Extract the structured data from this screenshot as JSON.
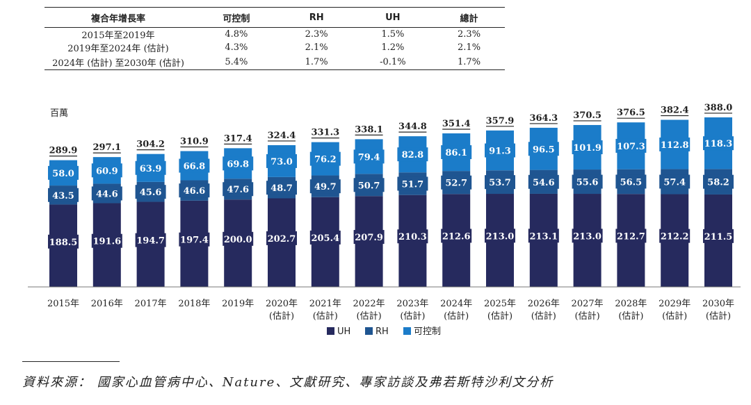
{
  "cagr_table": {
    "headers": [
      "複合年增長率",
      "可控制",
      "RH",
      "UH",
      "總計"
    ],
    "rows": [
      [
        "2015年至2019年",
        "4.8%",
        "2.3%",
        "1.5%",
        "2.3%"
      ],
      [
        "2019年至2024年 (估計)",
        "4.3%",
        "2.1%",
        "1.2%",
        "2.1%"
      ],
      [
        "2024年 (估計) 至2030年 (估計)",
        "5.4%",
        "1.7%",
        "-0.1%",
        "1.7%"
      ]
    ]
  },
  "chart_data": {
    "type": "bar",
    "stacked": true,
    "unit_label": "百萬",
    "categories": [
      [
        "2015年"
      ],
      [
        "2016年"
      ],
      [
        "2017年"
      ],
      [
        "2018年"
      ],
      [
        "2019年"
      ],
      [
        "2020年",
        "(估計)"
      ],
      [
        "2021年",
        "(估計)"
      ],
      [
        "2022年",
        "(估計)"
      ],
      [
        "2023年",
        "(估計)"
      ],
      [
        "2024年",
        "(估計)"
      ],
      [
        "2025年",
        "(估計)"
      ],
      [
        "2026年",
        "(估計)"
      ],
      [
        "2027年",
        "(估計)"
      ],
      [
        "2028年",
        "(估計)"
      ],
      [
        "2029年",
        "(估計)"
      ],
      [
        "2030年",
        "(估計)"
      ]
    ],
    "series": [
      {
        "name": "UH",
        "color": "#262a5e",
        "values": [
          188.5,
          191.6,
          194.7,
          197.4,
          200.0,
          202.7,
          205.4,
          207.9,
          210.3,
          212.6,
          213.0,
          213.1,
          213.0,
          212.7,
          212.2,
          211.5
        ]
      },
      {
        "name": "RH",
        "color": "#1f5591",
        "values": [
          43.5,
          44.6,
          45.6,
          46.6,
          47.6,
          48.7,
          49.7,
          50.7,
          51.7,
          52.7,
          53.7,
          54.6,
          55.6,
          56.5,
          57.4,
          58.2
        ]
      },
      {
        "name": "可控制",
        "color": "#1b7cc9",
        "values": [
          58.0,
          60.9,
          63.9,
          66.8,
          69.8,
          73.0,
          76.2,
          79.4,
          82.8,
          86.1,
          91.3,
          96.5,
          101.9,
          107.3,
          112.8,
          118.3
        ]
      }
    ],
    "totals": [
      289.9,
      297.1,
      304.2,
      310.9,
      317.4,
      324.4,
      331.3,
      338.1,
      344.8,
      351.4,
      357.9,
      364.3,
      370.5,
      376.5,
      382.4,
      388.0
    ],
    "ylim": [
      0,
      400
    ],
    "legend_position": "bottom-center",
    "grid": false
  },
  "source": "資料來源： 國家心血管病中心、Nature、文獻研究、專家訪談及弗若斯特沙利文分析"
}
